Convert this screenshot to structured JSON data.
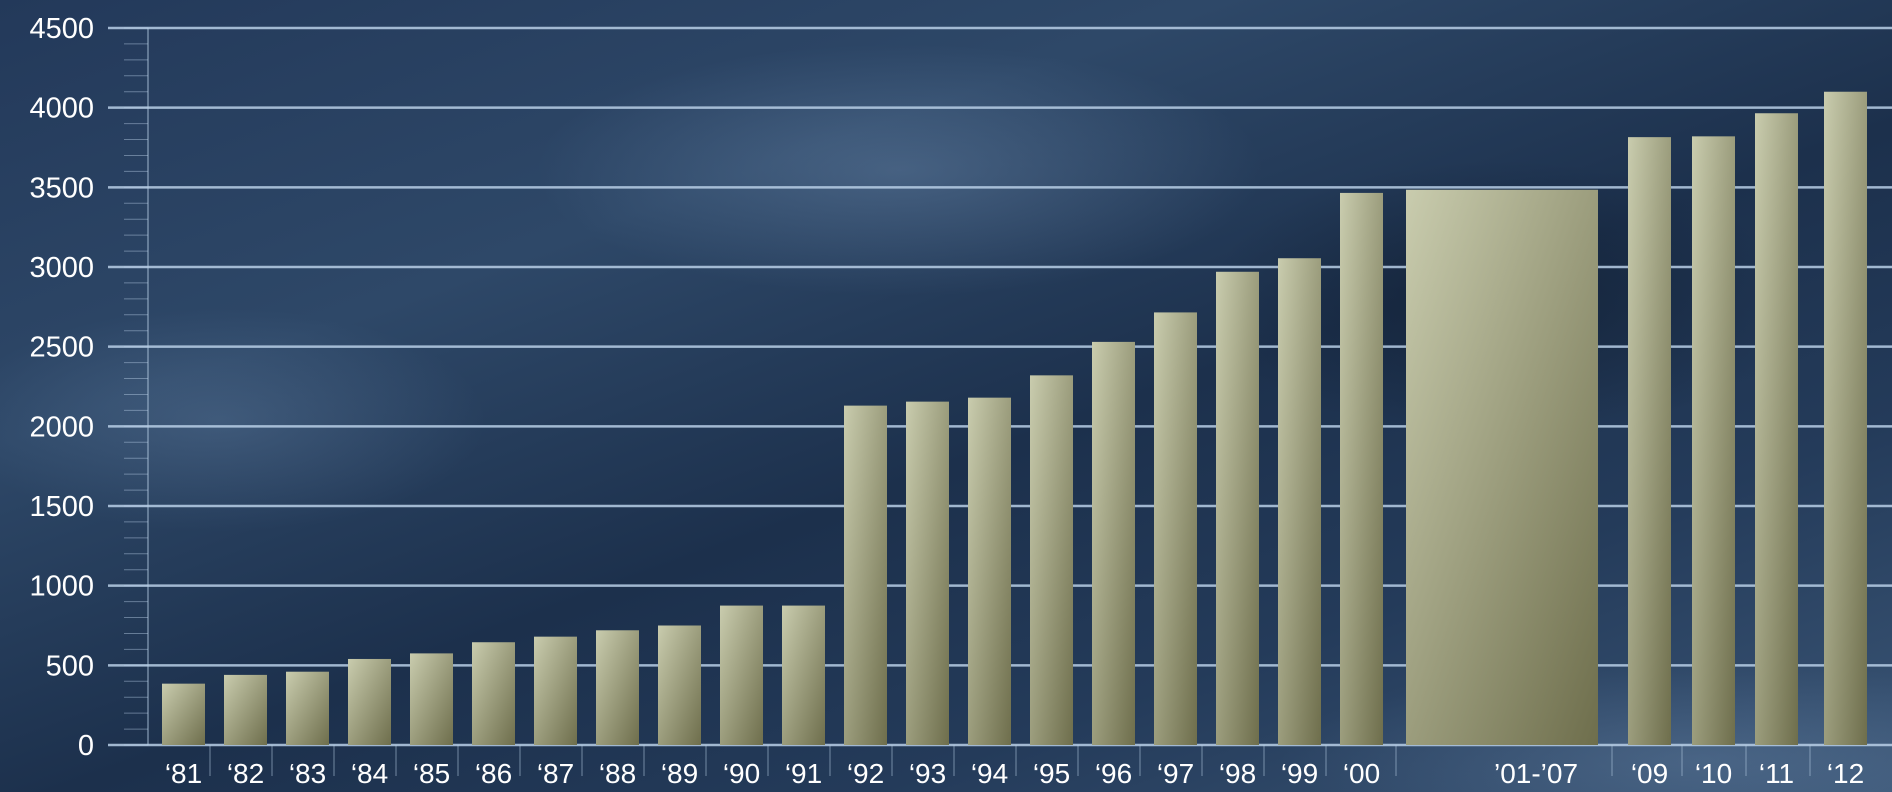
{
  "chart_data": {
    "type": "bar",
    "title": "",
    "xlabel": "",
    "ylabel": "",
    "ylim": [
      0,
      4500
    ],
    "yticks": [
      0,
      500,
      1000,
      1500,
      2000,
      2500,
      3000,
      3500,
      4000,
      4500
    ],
    "grid": true,
    "categories": [
      "‘81",
      "‘82",
      "‘83",
      "‘84",
      "‘85",
      "‘86",
      "‘87",
      "‘88",
      "‘89",
      "‘90",
      "‘91",
      "‘92",
      "‘93",
      "‘94",
      "‘95",
      "‘96",
      "‘97",
      "‘98",
      "‘99",
      "‘00",
      "’01-’07",
      "‘09",
      "‘10",
      "‘11",
      "‘12"
    ],
    "values": [
      385,
      440,
      460,
      540,
      575,
      645,
      680,
      720,
      750,
      875,
      875,
      2130,
      2155,
      2180,
      2320,
      2530,
      2715,
      2970,
      3055,
      3465,
      3485,
      3815,
      3820,
      3965,
      4100
    ],
    "colors": {
      "bar_light": "#c9ccae",
      "bar_dark": "#6e6e4c",
      "gridline": "#b8cfe6",
      "text": "#ffffff"
    }
  }
}
